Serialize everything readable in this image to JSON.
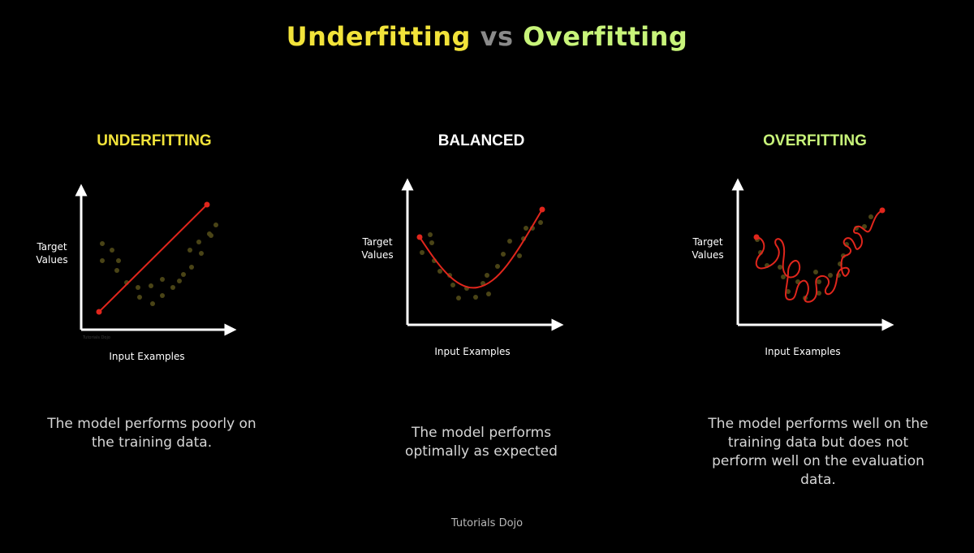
{
  "title": {
    "part1": "Underfitting",
    "vs": "vs",
    "part2": "Overfitting"
  },
  "colors": {
    "underfitting_yellow": "#f2e33a",
    "balanced_white": "#ffffff",
    "overfitting_green": "#c8f47a",
    "fit_line_red": "#e0261c",
    "data_point_olive": "#4a4416",
    "axis_white": "#ffffff"
  },
  "panels": [
    {
      "heading": "UNDERFITTING",
      "y_axis_label": "Target\nValues",
      "x_axis_label": "Input Examples",
      "description": "The model performs poorly on the training data.",
      "watermark": "Tutorials Dojo"
    },
    {
      "heading": "BALANCED",
      "y_axis_label": "Target\nValues",
      "x_axis_label": "Input Examples",
      "description": "The model performs optimally as expected"
    },
    {
      "heading": "OVERFITTING",
      "y_axis_label": "Target\nValues",
      "x_axis_label": "Input Examples",
      "description": "The model performs well on the training data but does not perform well on the evaluation data."
    }
  ],
  "footer": "Tutorials Dojo"
}
